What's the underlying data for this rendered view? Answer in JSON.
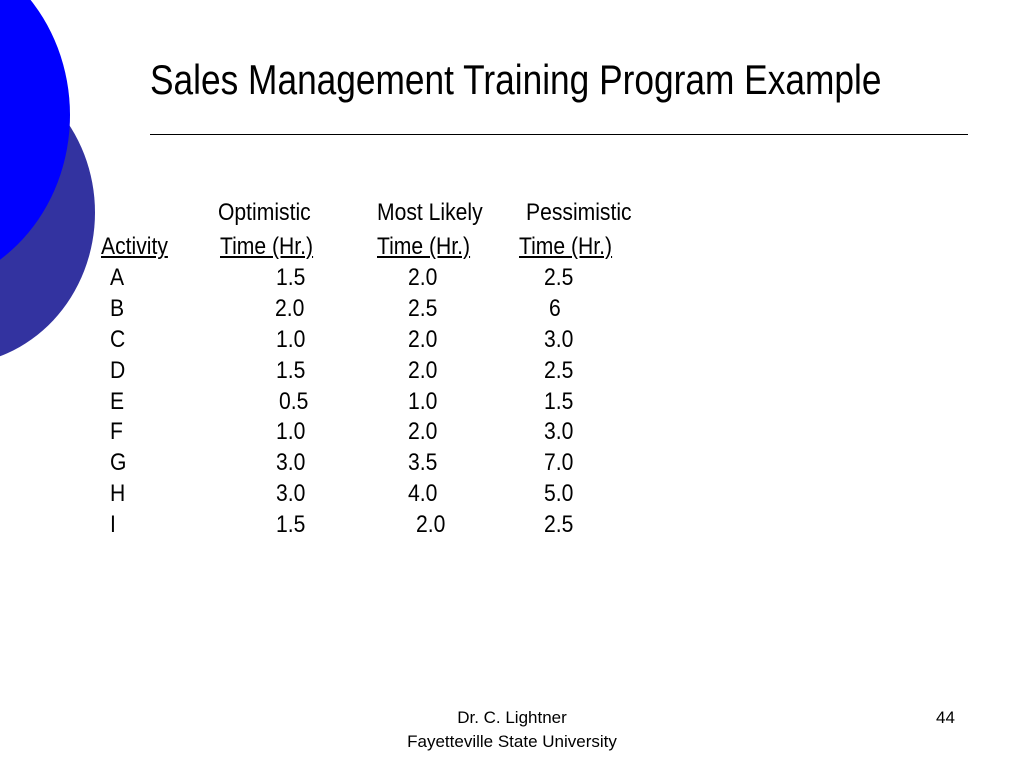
{
  "slide": {
    "title": "Sales Management Training Program Example",
    "accent_colors": {
      "circle_front": "#0000ff",
      "circle_back": "#3333a0"
    }
  },
  "table": {
    "header_top": [
      "Optimistic",
      "Most Likely",
      "Pessimistic"
    ],
    "header_bottom": [
      "Activity",
      "Time (Hr.)",
      "Time (Hr.)",
      "Time (Hr.)"
    ],
    "rows": [
      {
        "activity": "A",
        "optimistic": "1.5",
        "most_likely": "2.0",
        "pessimistic": "2.5"
      },
      {
        "activity": "B",
        "optimistic": "2.0",
        "most_likely": "2.5",
        "pessimistic": "6"
      },
      {
        "activity": "C",
        "optimistic": "1.0",
        "most_likely": "2.0",
        "pessimistic": "3.0"
      },
      {
        "activity": "D",
        "optimistic": "1.5",
        "most_likely": "2.0",
        "pessimistic": "2.5"
      },
      {
        "activity": "E",
        "optimistic": "0.5",
        "most_likely": "1.0",
        "pessimistic": "1.5"
      },
      {
        "activity": "F",
        "optimistic": "1.0",
        "most_likely": "2.0",
        "pessimistic": "3.0"
      },
      {
        "activity": "G",
        "optimistic": "3.0",
        "most_likely": "3.5",
        "pessimistic": "7.0"
      },
      {
        "activity": "H",
        "optimistic": "3.0",
        "most_likely": "4.0",
        "pessimistic": "5.0"
      },
      {
        "activity": "I",
        "optimistic": "1.5",
        "most_likely": "2.0",
        "pessimistic": "2.5"
      }
    ]
  },
  "footer": {
    "author": "Dr. C. Lightner",
    "institution": "Fayetteville State University",
    "page_number": "44"
  }
}
